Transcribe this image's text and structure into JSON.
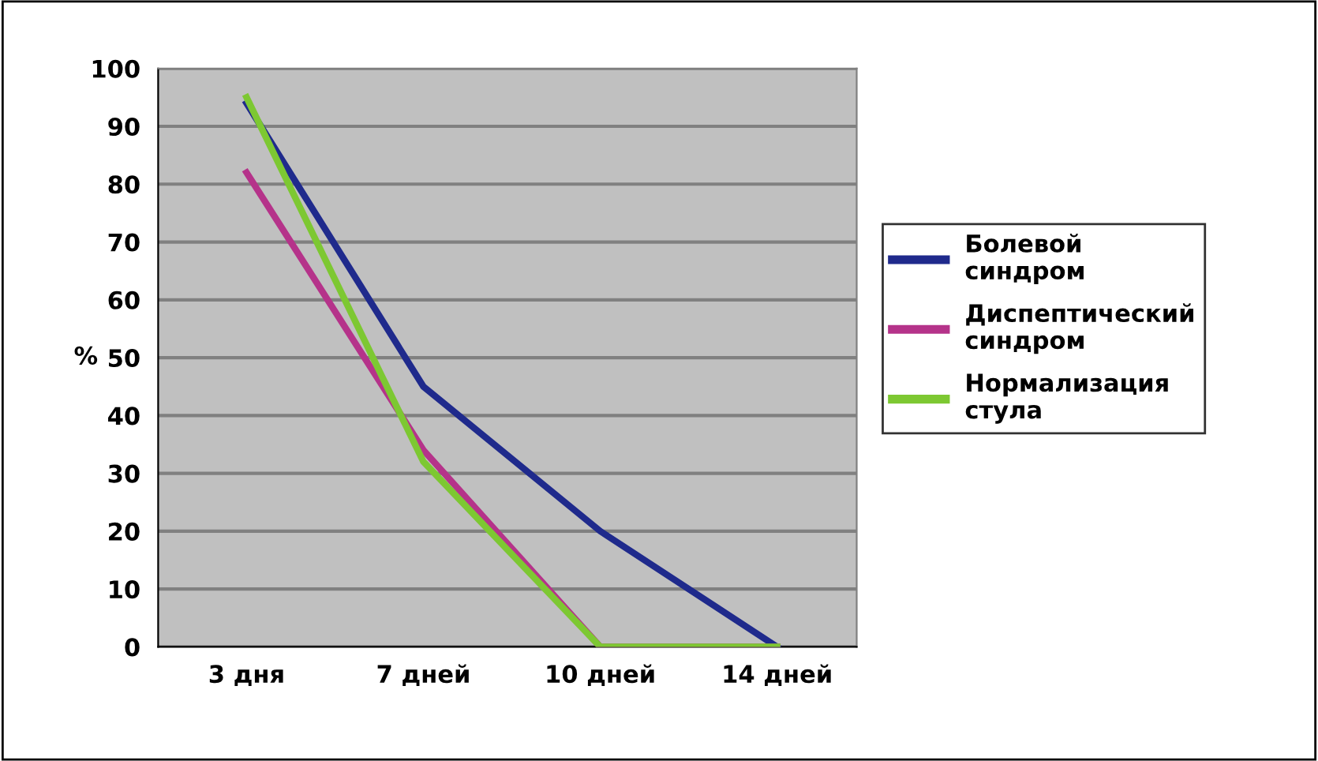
{
  "chart_data": {
    "type": "line",
    "ylabel": "%",
    "categories": [
      "3 дня",
      "7 дней",
      "10 дней",
      "14 дней"
    ],
    "series": [
      {
        "name": "Болевой синдром",
        "color": "#1f2a8c",
        "values": [
          94,
          45,
          20,
          0
        ]
      },
      {
        "name": "Диспептический синдром",
        "color": "#b5338a",
        "values": [
          82,
          34,
          0,
          0
        ]
      },
      {
        "name": "Нормализация стула",
        "color": "#7dc832",
        "values": [
          95,
          32,
          0,
          0
        ]
      }
    ],
    "ylim": [
      0,
      100
    ],
    "yticks": [
      0,
      10,
      20,
      30,
      40,
      50,
      60,
      70,
      80,
      90,
      100
    ],
    "grid": "y",
    "legend": "right",
    "marker": "none",
    "line_style": "solid"
  }
}
